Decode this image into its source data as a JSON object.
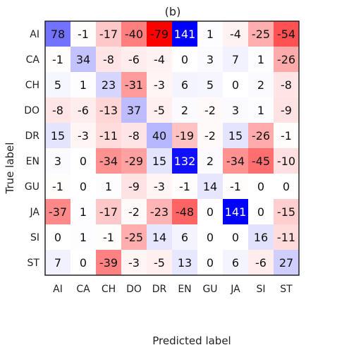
{
  "chart_data": {
    "type": "heatmap",
    "title": "(b)",
    "xlabel": "Predicted label",
    "ylabel": "True label",
    "x_categories": [
      "AI",
      "CA",
      "CH",
      "DO",
      "DR",
      "EN",
      "GU",
      "JA",
      "SI",
      "ST"
    ],
    "y_categories": [
      "AI",
      "CA",
      "CH",
      "DO",
      "DR",
      "EN",
      "GU",
      "JA",
      "SI",
      "ST"
    ],
    "values": [
      [
        78,
        -1,
        -17,
        -40,
        -79,
        141,
        1,
        -4,
        -25,
        -54
      ],
      [
        -1,
        34,
        -8,
        -6,
        -4,
        0,
        3,
        7,
        1,
        -26
      ],
      [
        5,
        1,
        23,
        -31,
        -3,
        6,
        5,
        0,
        2,
        -8
      ],
      [
        -8,
        -6,
        -13,
        37,
        -5,
        2,
        -2,
        3,
        1,
        -9
      ],
      [
        15,
        -3,
        -11,
        -8,
        40,
        -19,
        -2,
        15,
        -26,
        -1
      ],
      [
        3,
        0,
        -34,
        -29,
        15,
        132,
        2,
        -34,
        -45,
        -10
      ],
      [
        -1,
        0,
        1,
        -9,
        -3,
        -1,
        14,
        -1,
        0,
        0
      ],
      [
        -37,
        1,
        -17,
        -2,
        -23,
        -48,
        0,
        141,
        0,
        -15
      ],
      [
        0,
        1,
        -1,
        -25,
        14,
        6,
        0,
        0,
        16,
        -11
      ],
      [
        7,
        0,
        -39,
        -3,
        -5,
        13,
        0,
        6,
        -6,
        27
      ]
    ],
    "colormap": {
      "positive": "#0000ff",
      "zero": "#ffffff",
      "negative": "#ff0000",
      "vmax": 141,
      "vmin": -79
    },
    "grid": false,
    "legend": "none"
  }
}
